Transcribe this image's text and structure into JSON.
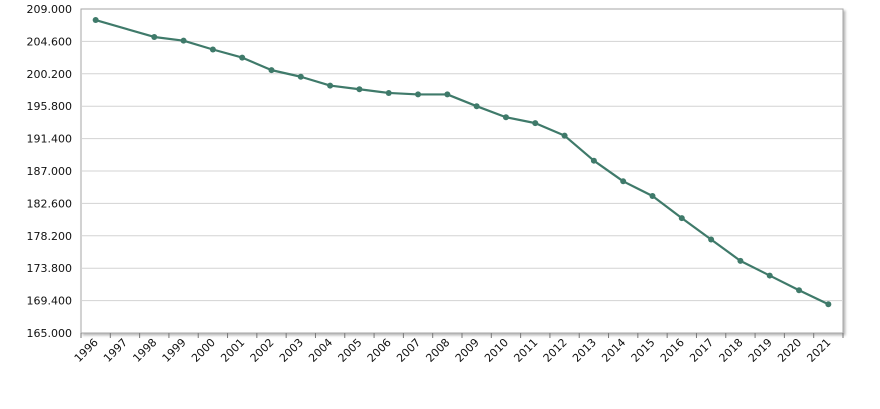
{
  "chart_data": {
    "type": "line",
    "title": "",
    "xlabel": "",
    "ylabel": "",
    "x": [
      "1996",
      "1997",
      "1998",
      "1999",
      "2000",
      "2001",
      "2002",
      "2003",
      "2004",
      "2005",
      "2006",
      "2007",
      "2008",
      "2009",
      "2010",
      "2011",
      "2012",
      "2013",
      "2014",
      "2015",
      "2016",
      "2017",
      "2018",
      "2019",
      "2020",
      "2021"
    ],
    "y_ticks": [
      "165.000",
      "169.400",
      "173.800",
      "178.200",
      "182.600",
      "187.000",
      "191.400",
      "195.800",
      "200.200",
      "204.600",
      "209.000"
    ],
    "ylim": [
      165.0,
      209.0
    ],
    "grid": true,
    "series": [
      {
        "name": "",
        "color": "#3f7a6a",
        "points": [
          {
            "x": "1996",
            "y": 207.5
          },
          {
            "x": "1998",
            "y": 205.2
          },
          {
            "x": "1999",
            "y": 204.7
          },
          {
            "x": "2000",
            "y": 203.5
          },
          {
            "x": "2001",
            "y": 202.4
          },
          {
            "x": "2002",
            "y": 200.7
          },
          {
            "x": "2003",
            "y": 199.8
          },
          {
            "x": "2004",
            "y": 198.6
          },
          {
            "x": "2005",
            "y": 198.1
          },
          {
            "x": "2006",
            "y": 197.6
          },
          {
            "x": "2007",
            "y": 197.4
          },
          {
            "x": "2008",
            "y": 197.4
          },
          {
            "x": "2009",
            "y": 195.8
          },
          {
            "x": "2010",
            "y": 194.3
          },
          {
            "x": "2011",
            "y": 193.5
          },
          {
            "x": "2012",
            "y": 191.8
          },
          {
            "x": "2013",
            "y": 188.4
          },
          {
            "x": "2014",
            "y": 185.6
          },
          {
            "x": "2015",
            "y": 183.6
          },
          {
            "x": "2016",
            "y": 180.6
          },
          {
            "x": "2017",
            "y": 177.7
          },
          {
            "x": "2018",
            "y": 174.8
          },
          {
            "x": "2019",
            "y": 172.8
          },
          {
            "x": "2020",
            "y": 170.8
          },
          {
            "x": "2021",
            "y": 168.9
          }
        ]
      }
    ]
  }
}
